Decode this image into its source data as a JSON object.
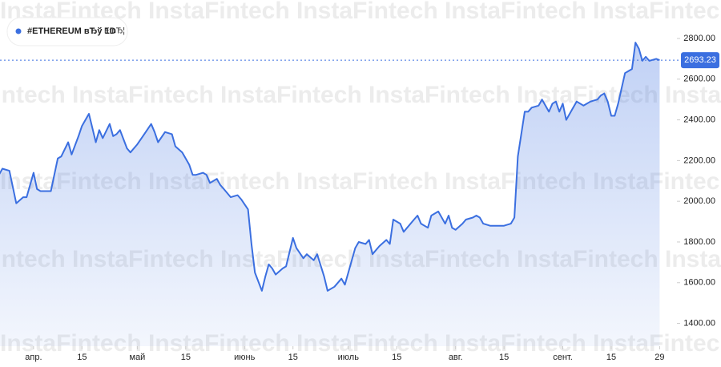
{
  "chart_data": {
    "type": "area",
    "title": "#ETHEREUM вЂў 1D",
    "subtitle": "EtвЂ¦",
    "watermark": "InstaFintech",
    "color": "#3b6fe0",
    "current_price": 2693.23,
    "x": [
      -10,
      -9,
      -7,
      -5,
      -3,
      -2,
      0,
      1,
      2,
      5,
      7,
      8,
      10,
      11,
      13,
      14,
      16,
      17,
      18,
      19,
      20,
      22,
      23,
      24,
      25,
      27,
      28,
      30,
      32,
      34,
      35,
      36,
      38,
      40,
      41,
      43,
      45,
      46,
      47,
      49,
      50,
      51,
      53,
      54,
      55,
      57,
      59,
      60,
      62,
      63,
      64,
      66,
      67,
      68,
      69,
      70,
      72,
      73,
      75,
      76,
      78,
      79,
      81,
      82,
      84,
      85,
      87,
      89,
      90,
      91,
      93,
      94,
      96,
      97,
      98,
      100,
      102,
      103,
      104,
      106,
      107,
      108,
      110,
      111,
      112,
      114,
      115,
      117,
      118,
      119,
      120,
      121,
      122,
      124,
      125,
      127,
      128,
      129,
      130,
      132,
      134,
      136,
      138,
      139,
      140,
      142,
      143,
      144,
      146,
      147,
      149,
      150,
      151,
      152,
      153,
      154,
      156,
      157,
      159,
      160,
      161,
      163,
      164,
      165,
      166,
      167,
      168,
      169,
      171,
      172,
      173,
      174,
      175,
      176,
      177,
      178,
      180,
      181
    ],
    "values": [
      2130,
      2160,
      2150,
      1990,
      2020,
      2020,
      2140,
      2060,
      2050,
      2050,
      2210,
      2220,
      2290,
      2230,
      2320,
      2370,
      2430,
      2360,
      2290,
      2350,
      2310,
      2380,
      2320,
      2330,
      2350,
      2260,
      2240,
      2280,
      2330,
      2380,
      2340,
      2290,
      2340,
      2330,
      2270,
      2240,
      2180,
      2130,
      2130,
      2140,
      2130,
      2090,
      2110,
      2080,
      2060,
      2020,
      2030,
      2010,
      1960,
      1790,
      1650,
      1560,
      1630,
      1690,
      1670,
      1640,
      1670,
      1680,
      1820,
      1770,
      1720,
      1740,
      1710,
      1740,
      1630,
      1560,
      1580,
      1620,
      1590,
      1650,
      1770,
      1800,
      1790,
      1810,
      1740,
      1780,
      1810,
      1790,
      1910,
      1890,
      1850,
      1870,
      1910,
      1930,
      1890,
      1870,
      1930,
      1950,
      1920,
      1890,
      1930,
      1870,
      1860,
      1890,
      1910,
      1920,
      1930,
      1920,
      1890,
      1880,
      1880,
      1880,
      1890,
      1920,
      2220,
      2440,
      2440,
      2460,
      2470,
      2500,
      2440,
      2480,
      2490,
      2440,
      2480,
      2400,
      2460,
      2490,
      2470,
      2480,
      2490,
      2500,
      2520,
      2530,
      2490,
      2420,
      2420,
      2480,
      2630,
      2640,
      2650,
      2780,
      2750,
      2690,
      2710,
      2690,
      2700,
      2693.23
    ],
    "xlim": [
      -9.7,
      186
    ],
    "xticks": [
      {
        "value": 0,
        "label": "апр."
      },
      {
        "value": 14,
        "label": "15"
      },
      {
        "value": 30,
        "label": "май"
      },
      {
        "value": 44,
        "label": "15"
      },
      {
        "value": 61,
        "label": "июнь"
      },
      {
        "value": 75,
        "label": "15"
      },
      {
        "value": 91,
        "label": "июль"
      },
      {
        "value": 105,
        "label": "15"
      },
      {
        "value": 122,
        "label": "авг."
      },
      {
        "value": 136,
        "label": "15"
      },
      {
        "value": 153,
        "label": "сент."
      },
      {
        "value": 167,
        "label": "15"
      },
      {
        "value": 181,
        "label": "29"
      }
    ],
    "ylim": [
      1288,
      2989
    ],
    "yticks": [
      {
        "value": 1400,
        "label": "1400.00"
      },
      {
        "value": 1600,
        "label": "1600.00"
      },
      {
        "value": 1800,
        "label": "1800.00"
      },
      {
        "value": 2000,
        "label": "2000.00"
      },
      {
        "value": 2200,
        "label": "2200.00"
      },
      {
        "value": 2400,
        "label": "2400.00"
      },
      {
        "value": 2600,
        "label": "2600.00"
      },
      {
        "value": 2800,
        "label": "2800.00"
      }
    ]
  }
}
